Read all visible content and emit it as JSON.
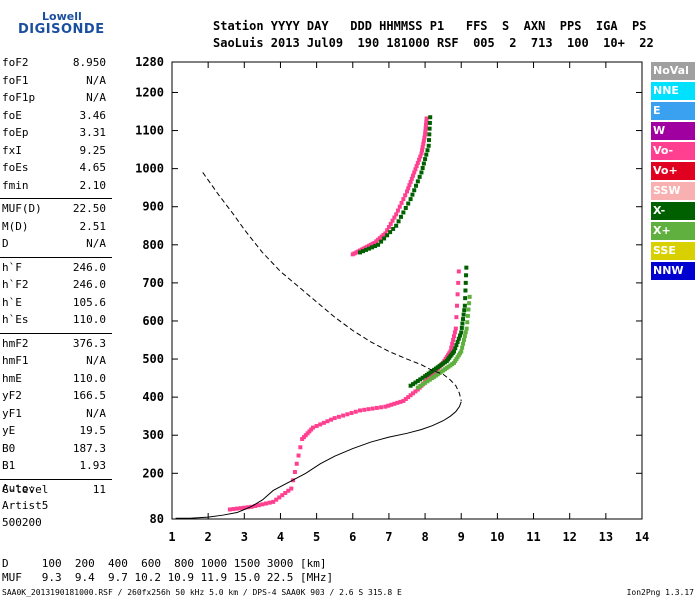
{
  "logo": {
    "line1": "Lowell",
    "line2": "DIGISONDE"
  },
  "header": {
    "line1": "Station YYYY DAY   DDD HHMMSS P1   FFS  S  AXN  PPS  IGA  PS",
    "line2": "SaoLuis 2013 Jul09  190 181000 RSF  005  2  713  100  10+  22"
  },
  "params": {
    "group1": [
      {
        "k": "foF2",
        "v": "8.950"
      },
      {
        "k": "foF1",
        "v": "N/A"
      },
      {
        "k": "foF1p",
        "v": "N/A"
      },
      {
        "k": "foE",
        "v": "3.46"
      },
      {
        "k": "foEp",
        "v": "3.31"
      },
      {
        "k": "fxI",
        "v": "9.25"
      },
      {
        "k": "foEs",
        "v": "4.65"
      },
      {
        "k": "fmin",
        "v": "2.10"
      }
    ],
    "group2": [
      {
        "k": "MUF(D)",
        "v": "22.50"
      },
      {
        "k": "M(D)",
        "v": "2.51"
      },
      {
        "k": "D",
        "v": "N/A"
      }
    ],
    "group3": [
      {
        "k": "h`F",
        "v": "246.0"
      },
      {
        "k": "h`F2",
        "v": "246.0"
      },
      {
        "k": "h`E",
        "v": "105.6"
      },
      {
        "k": "h`Es",
        "v": "110.0"
      }
    ],
    "group4": [
      {
        "k": "hmF2",
        "v": "376.3"
      },
      {
        "k": "hmF1",
        "v": "N/A"
      },
      {
        "k": "hmE",
        "v": "110.0"
      },
      {
        "k": "yF2",
        "v": "166.5"
      },
      {
        "k": "yF1",
        "v": "N/A"
      },
      {
        "k": "yE",
        "v": "19.5"
      },
      {
        "k": "B0",
        "v": "187.3"
      },
      {
        "k": "B1",
        "v": "1.93"
      }
    ],
    "group5": [
      {
        "k": "C-level",
        "v": "11"
      }
    ]
  },
  "auto": {
    "l1": "Auto:",
    "l2": "Artist5",
    "l3": "500200"
  },
  "legend": [
    {
      "label": "NoVal",
      "color": "#a0a0a0"
    },
    {
      "label": "NNE",
      "color": "#00e0ff"
    },
    {
      "label": "E",
      "color": "#3aa0f0"
    },
    {
      "label": "W",
      "color": "#a000a0"
    },
    {
      "label": "Vo-",
      "color": "#ff4090"
    },
    {
      "label": "Vo+",
      "color": "#e00020"
    },
    {
      "label": "SSW",
      "color": "#f8b0b0"
    },
    {
      "label": "X-",
      "color": "#006000"
    },
    {
      "label": "X+",
      "color": "#60b040"
    },
    {
      "label": "SSE",
      "color": "#d8d000"
    },
    {
      "label": "NNW",
      "color": "#0000d0"
    }
  ],
  "muf_table": {
    "d_line": "D     100  200  400  600  800 1000 1500 3000 [km]",
    "muf_line": "MUF   9.3  9.4  9.7 10.2 10.9 11.9 15.0 22.5 [MHz]"
  },
  "footer": "SAA0K_2013190181000.RSF / 260fx256h 50 kHz 5.0 km / DPS-4 SAA0K 903 / 2.6 S 315.8 E",
  "version": "Ion2Png 1.3.17",
  "chart_data": {
    "type": "scatter",
    "xlim": [
      1,
      14
    ],
    "ylim": [
      80,
      1280
    ],
    "x_ticks": [
      1,
      2,
      3,
      4,
      5,
      6,
      7,
      8,
      9,
      10,
      11,
      12,
      13,
      14
    ],
    "y_ticks": [
      80,
      200,
      300,
      400,
      500,
      600,
      700,
      800,
      900,
      1000,
      1100,
      1200,
      1280
    ],
    "grid": false,
    "legend_position": "right",
    "series": [
      {
        "name": "Vo-",
        "color": "#ff4090",
        "x": [
          2.6,
          3.2,
          3.8,
          4.3,
          4.6,
          4.9,
          5.5,
          6.2,
          6.9,
          7.4,
          7.8,
          8.1,
          8.3,
          8.5,
          8.7,
          8.85,
          8.95
        ],
        "y": [
          105,
          112,
          125,
          160,
          290,
          320,
          345,
          365,
          375,
          390,
          420,
          450,
          470,
          490,
          520,
          580,
          760
        ]
      },
      {
        "name": "X-",
        "color": "#006000",
        "x": [
          7.6,
          8.0,
          8.3,
          8.6,
          8.8,
          9.0,
          9.1,
          9.15
        ],
        "y": [
          430,
          455,
          475,
          495,
          520,
          570,
          640,
          760
        ]
      },
      {
        "name": "X+",
        "color": "#60b040",
        "x": [
          7.8,
          8.2,
          8.5,
          8.8,
          9.0,
          9.15,
          9.25
        ],
        "y": [
          425,
          450,
          470,
          490,
          520,
          580,
          680
        ]
      },
      {
        "name": "Vo- (2nd hop)",
        "color": "#ff4090",
        "x": [
          6.0,
          6.3,
          6.6,
          6.9,
          7.2,
          7.5,
          7.7,
          7.9,
          8.0,
          8.05
        ],
        "y": [
          775,
          790,
          805,
          830,
          880,
          940,
          990,
          1040,
          1090,
          1140
        ]
      },
      {
        "name": "X- (2nd hop)",
        "color": "#006000",
        "x": [
          6.2,
          6.7,
          7.2,
          7.6,
          7.9,
          8.1,
          8.15
        ],
        "y": [
          780,
          800,
          850,
          920,
          990,
          1060,
          1150
        ]
      }
    ],
    "profile_curve": {
      "x": [
        1.1,
        1.5,
        2.0,
        2.4,
        2.8,
        3.0,
        3.2,
        3.5,
        3.8,
        4.2,
        4.7,
        5.1,
        5.5,
        6.0,
        6.5,
        7.0,
        7.5,
        7.9,
        8.2,
        8.5,
        8.7,
        8.85,
        8.95,
        9.0
      ],
      "y": [
        82,
        82,
        85,
        90,
        97,
        105,
        113,
        130,
        155,
        175,
        200,
        225,
        245,
        265,
        282,
        295,
        305,
        315,
        325,
        338,
        350,
        362,
        375,
        388
      ]
    },
    "dashed_curve": {
      "x": [
        1.85,
        2.3,
        2.7,
        3.0,
        3.5,
        4.0,
        4.5,
        5.0,
        5.5,
        6.0,
        6.5,
        7.0,
        7.5,
        7.9,
        8.2,
        8.5,
        8.7,
        8.85,
        8.95,
        9.0
      ],
      "y": [
        990,
        930,
        880,
        840,
        780,
        730,
        690,
        650,
        610,
        575,
        545,
        520,
        500,
        485,
        470,
        460,
        445,
        430,
        410,
        390
      ]
    }
  }
}
